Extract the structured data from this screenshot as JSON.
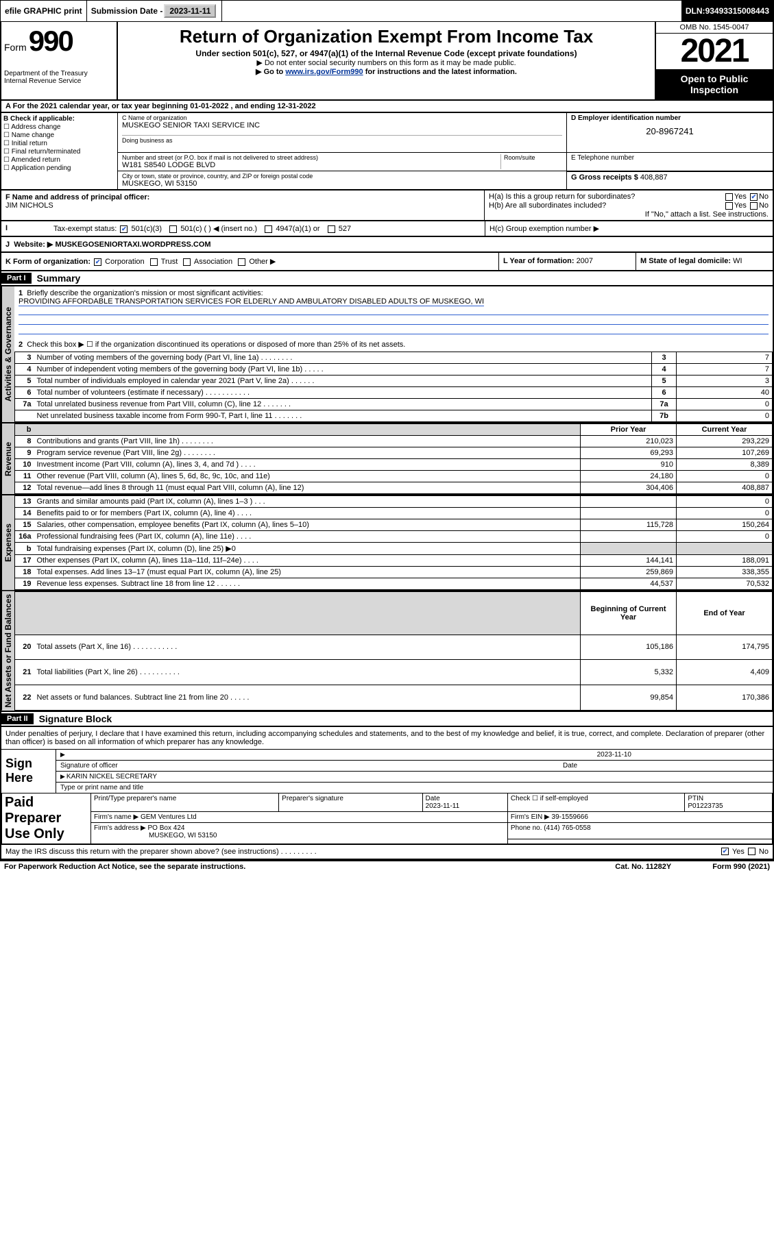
{
  "topbar": {
    "efile": "efile GRAPHIC print",
    "subdate_lbl": "Submission Date - ",
    "subdate": "2023-11-11",
    "dln_lbl": "DLN: ",
    "dln": "93493315008443"
  },
  "header": {
    "form_prefix": "Form",
    "form_no": "990",
    "dept": "Department of the Treasury",
    "irs": "Internal Revenue Service",
    "title": "Return of Organization Exempt From Income Tax",
    "sub1": "Under section 501(c), 527, or 4947(a)(1) of the Internal Revenue Code (except private foundations)",
    "sub2": "▶ Do not enter social security numbers on this form as it may be made public.",
    "sub3_pre": "▶ Go to ",
    "sub3_link": "www.irs.gov/Form990",
    "sub3_post": " for instructions and the latest information.",
    "omb": "OMB No. 1545-0047",
    "year": "2021",
    "open": "Open to Public Inspection"
  },
  "row_a": "For the 2021 calendar year, or tax year beginning 01-01-2022   , and ending 12-31-2022",
  "col_b": {
    "hdr": "B Check if applicable:",
    "items": [
      "Address change",
      "Name change",
      "Initial return",
      "Final return/terminated",
      "Amended return",
      "Application pending"
    ]
  },
  "c": {
    "name_lbl": "C Name of organization",
    "name": "MUSKEGO SENIOR TAXI SERVICE INC",
    "dba_lbl": "Doing business as",
    "addr_lbl": "Number and street (or P.O. box if mail is not delivered to street address)",
    "room_lbl": "Room/suite",
    "addr": "W181 S8540 LODGE BLVD",
    "city_lbl": "City or town, state or province, country, and ZIP or foreign postal code",
    "city": "MUSKEGO, WI  53150"
  },
  "d": {
    "lbl": "D Employer identification number",
    "val": "20-8967241"
  },
  "e": {
    "lbl": "E Telephone number",
    "val": ""
  },
  "g": {
    "lbl": "G Gross receipts $",
    "val": "408,887"
  },
  "f": {
    "lbl": "F  Name and address of principal officer:",
    "name": "JIM NICHOLS"
  },
  "h": {
    "a": "H(a)  Is this a group return for subordinates?",
    "b": "H(b)  Are all subordinates included?",
    "note": "If \"No,\" attach a list. See instructions.",
    "c": "H(c)  Group exemption number ▶",
    "yes": "Yes",
    "no": "No"
  },
  "i": {
    "lbl": "Tax-exempt status:",
    "opts": [
      "501(c)(3)",
      "501(c) (  ) ◀ (insert no.)",
      "4947(a)(1) or",
      "527"
    ]
  },
  "j": {
    "lbl": "Website: ▶",
    "val": "MUSKEGOSENIORTAXI.WORDPRESS.COM"
  },
  "k": {
    "lbl": "K Form of organization:",
    "opts": [
      "Corporation",
      "Trust",
      "Association",
      "Other ▶"
    ]
  },
  "l": {
    "lbl": "L Year of formation: ",
    "val": "2007"
  },
  "m": {
    "lbl": "M State of legal domicile: ",
    "val": "WI"
  },
  "part1": {
    "hdr": "Part I",
    "title": "Summary"
  },
  "mission": {
    "lbl": "Briefly describe the organization's mission or most significant activities:",
    "text": "PROVIDING AFFORDABLE TRANSPORTATION SERVICES FOR ELDERLY AND AMBULATORY DISABLED ADULTS OF MUSKEGO, WI"
  },
  "line2": "Check this box ▶ ☐  if the organization discontinued its operations or disposed of more than 25% of its net assets.",
  "gov_lines": [
    {
      "n": "3",
      "d": "Number of voting members of the governing body (Part VI, line 1a)  .    .    .    .    .    .    .    .",
      "box": "3",
      "v": "7"
    },
    {
      "n": "4",
      "d": "Number of independent voting members of the governing body (Part VI, line 1b)   .    .    .    .    .",
      "box": "4",
      "v": "7"
    },
    {
      "n": "5",
      "d": "Total number of individuals employed in calendar year 2021 (Part V, line 2a)  .    .    .    .    .    .",
      "box": "5",
      "v": "3"
    },
    {
      "n": "6",
      "d": "Total number of volunteers (estimate if necessary)   .    .    .    .    .    .    .    .    .    .    .",
      "box": "6",
      "v": "40"
    },
    {
      "n": "7a",
      "d": "Total unrelated business revenue from Part VIII, column (C), line 12   .    .    .    .    .    .    .",
      "box": "7a",
      "v": "0"
    },
    {
      "n": "",
      "d": "Net unrelated business taxable income from Form 990-T, Part I, line 11   .    .    .    .    .    .    .",
      "box": "7b",
      "v": "0"
    }
  ],
  "two_col_hdr": {
    "prior": "Prior Year",
    "current": "Current Year",
    "beg": "Beginning of Current Year",
    "end": "End of Year"
  },
  "revenue": [
    {
      "n": "8",
      "d": "Contributions and grants (Part VIII, line 1h)   .    .    .    .    .    .    .    .",
      "p": "210,023",
      "c": "293,229"
    },
    {
      "n": "9",
      "d": "Program service revenue (Part VIII, line 2g)   .    .    .    .    .    .    .    .",
      "p": "69,293",
      "c": "107,269"
    },
    {
      "n": "10",
      "d": "Investment income (Part VIII, column (A), lines 3, 4, and 7d )   .    .    .    .",
      "p": "910",
      "c": "8,389"
    },
    {
      "n": "11",
      "d": "Other revenue (Part VIII, column (A), lines 5, 6d, 8c, 9c, 10c, and 11e)",
      "p": "24,180",
      "c": "0"
    },
    {
      "n": "12",
      "d": "Total revenue—add lines 8 through 11 (must equal Part VIII, column (A), line 12)",
      "p": "304,406",
      "c": "408,887"
    }
  ],
  "expenses": [
    {
      "n": "13",
      "d": "Grants and similar amounts paid (Part IX, column (A), lines 1–3 )   .    .    .",
      "p": "",
      "c": "0"
    },
    {
      "n": "14",
      "d": "Benefits paid to or for members (Part IX, column (A), line 4)   .    .    .    .",
      "p": "",
      "c": "0"
    },
    {
      "n": "15",
      "d": "Salaries, other compensation, employee benefits (Part IX, column (A), lines 5–10)",
      "p": "115,728",
      "c": "150,264"
    },
    {
      "n": "16a",
      "d": "Professional fundraising fees (Part IX, column (A), line 11e)   .    .    .    .",
      "p": "",
      "c": "0"
    },
    {
      "n": "b",
      "d": "Total fundraising expenses (Part IX, column (D), line 25) ▶0",
      "p": "shade",
      "c": "shade"
    },
    {
      "n": "17",
      "d": "Other expenses (Part IX, column (A), lines 11a–11d, 11f–24e)   .    .    .    .",
      "p": "144,141",
      "c": "188,091"
    },
    {
      "n": "18",
      "d": "Total expenses. Add lines 13–17 (must equal Part IX, column (A), line 25)",
      "p": "259,869",
      "c": "338,355"
    },
    {
      "n": "19",
      "d": "Revenue less expenses. Subtract line 18 from line 12   .    .    .    .    .    .",
      "p": "44,537",
      "c": "70,532"
    }
  ],
  "netassets": [
    {
      "n": "20",
      "d": "Total assets (Part X, line 16)   .    .    .    .    .    .    .    .    .    .    .",
      "p": "105,186",
      "c": "174,795"
    },
    {
      "n": "21",
      "d": "Total liabilities (Part X, line 26)   .    .    .    .    .    .    .    .    .    .",
      "p": "5,332",
      "c": "4,409"
    },
    {
      "n": "22",
      "d": "Net assets or fund balances. Subtract line 21 from line 20   .    .    .    .    .",
      "p": "99,854",
      "c": "170,386"
    }
  ],
  "part2": {
    "hdr": "Part II",
    "title": "Signature Block"
  },
  "sig": {
    "decl": "Under penalties of perjury, I declare that I have examined this return, including accompanying schedules and statements, and to the best of my knowledge and belief, it is true, correct, and complete. Declaration of preparer (other than officer) is based on all information of which preparer has any knowledge.",
    "sign_here": "Sign Here",
    "sig_officer": "Signature of officer",
    "date_lbl": "Date",
    "sig_date": "2023-11-10",
    "name": "KARIN NICKEL  SECRETARY",
    "name_lbl": "Type or print name and title"
  },
  "paid": {
    "label": "Paid Preparer Use Only",
    "h1": "Print/Type preparer's name",
    "h2": "Preparer's signature",
    "h3": "Date",
    "h3v": "2023-11-11",
    "h4": "Check ☐ if self-employed",
    "h5": "PTIN",
    "h5v": "P01223735",
    "firm_name_lbl": "Firm's name    ▶",
    "firm_name": "GEM Ventures Ltd",
    "firm_ein_lbl": "Firm's EIN ▶",
    "firm_ein": "39-1559666",
    "firm_addr_lbl": "Firm's address ▶",
    "firm_addr1": "PO Box 424",
    "firm_addr2": "MUSKEGO, WI  53150",
    "phone_lbl": "Phone no.",
    "phone": "(414) 765-0558"
  },
  "discuss": "May the IRS discuss this return with the preparer shown above? (see instructions)   .    .    .    .    .    .    .    .    .",
  "footer": {
    "l": "For Paperwork Reduction Act Notice, see the separate instructions.",
    "m": "Cat. No. 11282Y",
    "r": "Form 990 (2021)"
  },
  "labels": {
    "vert_gov": "Activities & Governance",
    "vert_rev": "Revenue",
    "vert_exp": "Expenses",
    "vert_net": "Net Assets or Fund Balances"
  }
}
